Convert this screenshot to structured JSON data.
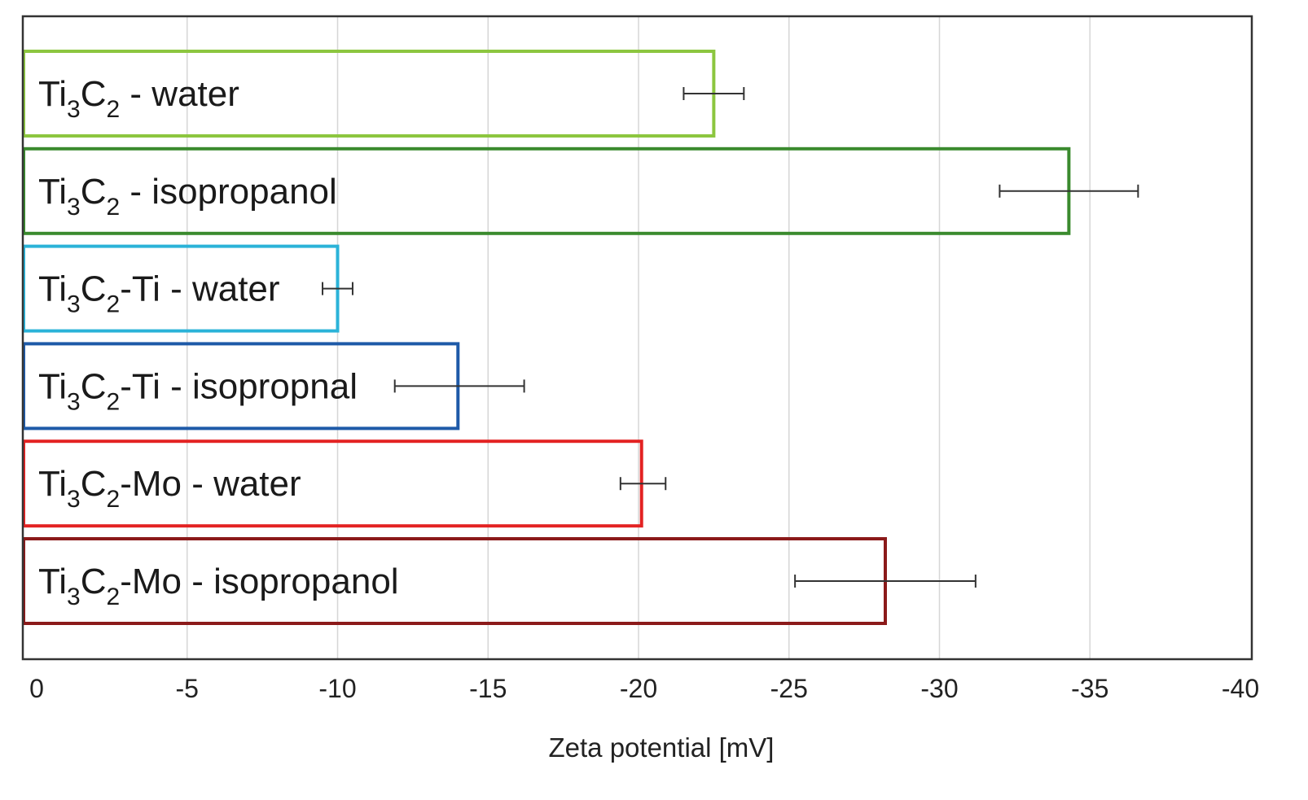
{
  "chart_data": {
    "type": "bar",
    "orientation": "horizontal",
    "title": "",
    "xlabel": "Zeta potential [mV]",
    "ylabel": "",
    "xlim": [
      0,
      -40
    ],
    "x_ticks": [
      0,
      -5,
      -10,
      -15,
      -20,
      -25,
      -30,
      -35,
      -40
    ],
    "x_tick_labels": [
      "0",
      "-5",
      "-10",
      "-15",
      "-20",
      "-25",
      "-30",
      "-35",
      "-40"
    ],
    "grid": "vertical",
    "bar_fill": "none",
    "series": [
      {
        "name": "Ti3C2 - water",
        "label_parts": [
          [
            "Ti",
            ""
          ],
          [
            "3",
            "sub"
          ],
          [
            "C",
            ""
          ],
          [
            "2",
            "sub"
          ],
          [
            " - water",
            ""
          ]
        ],
        "value": -22.5,
        "error_low": -21.5,
        "error_high": -23.5,
        "color": "#8cc63f"
      },
      {
        "name": "Ti3C2 - isopropanol",
        "label_parts": [
          [
            "Ti",
            ""
          ],
          [
            "3",
            "sub"
          ],
          [
            "C",
            ""
          ],
          [
            "2",
            "sub"
          ],
          [
            " - isopropanol",
            ""
          ]
        ],
        "value": -34.3,
        "error_low": -32.0,
        "error_high": -36.6,
        "color": "#3a8a2e"
      },
      {
        "name": "Ti3C2-Ti - water",
        "label_parts": [
          [
            "Ti",
            ""
          ],
          [
            "3",
            "sub"
          ],
          [
            "C",
            ""
          ],
          [
            "2",
            "sub"
          ],
          [
            "-Ti - water",
            ""
          ]
        ],
        "value": -10.0,
        "error_low": -9.5,
        "error_high": -10.5,
        "color": "#2bb3d8"
      },
      {
        "name": "Ti3C2-Ti - isopropnal",
        "label_parts": [
          [
            "Ti",
            ""
          ],
          [
            "3",
            "sub"
          ],
          [
            "C",
            ""
          ],
          [
            "2",
            "sub"
          ],
          [
            "-Ti - isopropnal",
            ""
          ]
        ],
        "value": -14.0,
        "error_low": -11.9,
        "error_high": -16.2,
        "color": "#1e5aa8"
      },
      {
        "name": "Ti3C2-Mo - water",
        "label_parts": [
          [
            "Ti",
            ""
          ],
          [
            "3",
            "sub"
          ],
          [
            "C",
            ""
          ],
          [
            "2",
            "sub"
          ],
          [
            "-Mo - water",
            ""
          ]
        ],
        "value": -20.1,
        "error_low": -19.4,
        "error_high": -20.9,
        "color": "#e32222"
      },
      {
        "name": "Ti3C2-Mo - isopropanol",
        "label_parts": [
          [
            "Ti",
            ""
          ],
          [
            "3",
            "sub"
          ],
          [
            "C",
            ""
          ],
          [
            "2",
            "sub"
          ],
          [
            "-Mo - isopropanol",
            ""
          ]
        ],
        "value": -28.2,
        "error_low": -25.2,
        "error_high": -31.2,
        "color": "#8b1a1a"
      }
    ]
  }
}
